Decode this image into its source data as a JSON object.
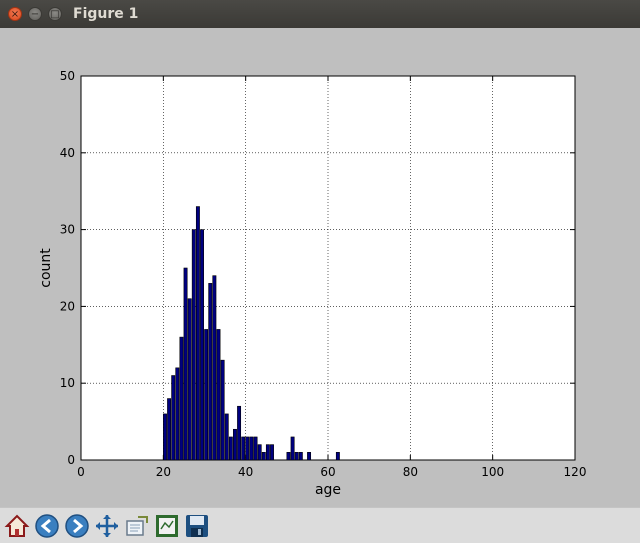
{
  "window": {
    "title": "Figure 1"
  },
  "toolbar": {
    "buttons": [
      {
        "name": "home-icon"
      },
      {
        "name": "back-arrow-icon"
      },
      {
        "name": "forward-arrow-icon"
      },
      {
        "name": "pan-move-icon"
      },
      {
        "name": "zoom-rect-icon"
      },
      {
        "name": "subplots-config-icon"
      },
      {
        "name": "save-disk-icon"
      }
    ]
  },
  "chart_data": {
    "type": "bar",
    "xlabel": "age",
    "ylabel": "count",
    "xlim": [
      0,
      120
    ],
    "ylim": [
      0,
      50
    ],
    "xticks": [
      0,
      20,
      40,
      60,
      80,
      100,
      120
    ],
    "yticks": [
      0,
      10,
      20,
      30,
      40,
      50
    ],
    "grid": true,
    "bar_color": "#000080",
    "bar_edge_color": "#000000",
    "x": [
      20,
      21,
      22,
      23,
      24,
      25,
      26,
      27,
      28,
      29,
      30,
      31,
      32,
      33,
      34,
      35,
      36,
      37,
      38,
      39,
      40,
      41,
      42,
      43,
      44,
      45,
      46,
      50,
      51,
      52,
      53,
      55,
      62
    ],
    "values": [
      6,
      8,
      11,
      12,
      16,
      25,
      21,
      30,
      33,
      30,
      17,
      23,
      24,
      17,
      13,
      6,
      3,
      4,
      7,
      3,
      3,
      3,
      3,
      2,
      1,
      2,
      2,
      1,
      3,
      1,
      1,
      1,
      1
    ]
  }
}
